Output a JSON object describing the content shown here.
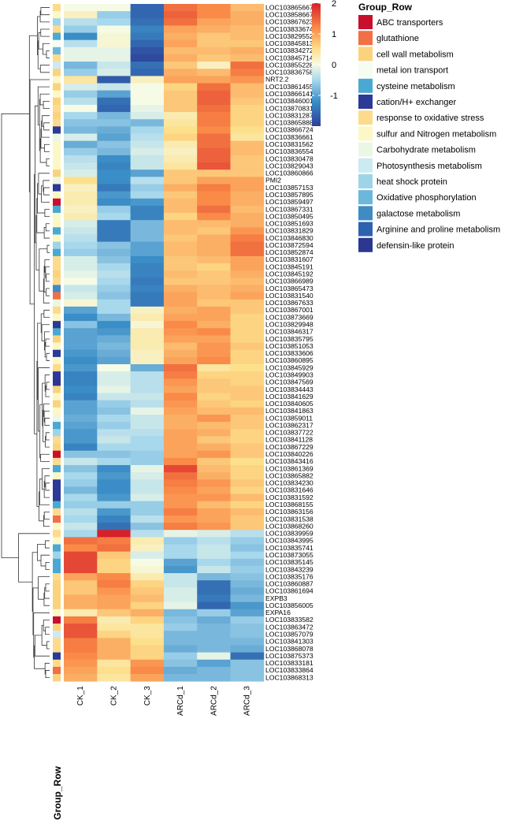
{
  "chart_data": {
    "type": "heatmap",
    "columns": [
      "CK_1",
      "CK_2",
      "CK_3",
      "ARCd_1",
      "ARCd_2",
      "ARCd_3"
    ],
    "row_annotation_title": "Group_Row",
    "colorbar": {
      "min": -2,
      "max": 2,
      "ticks": [
        "2",
        "1",
        "0",
        "-1"
      ],
      "tick_values": [
        2,
        1,
        0,
        -1
      ]
    },
    "colors": {
      "low": "#2c3f99",
      "mid_low": "#3a8dc6",
      "light_low": "#a8d8ec",
      "neutral": "#f6fbe6",
      "light_high": "#fde08c",
      "mid_high": "#fa8a47",
      "high": "#d6202a"
    },
    "legend": [
      {
        "label": "ABC transporters",
        "color": "#c8102e"
      },
      {
        "label": "glutathione",
        "color": "#f36f45"
      },
      {
        "label": "cell wall metabolism",
        "color": "#fbd37d"
      },
      {
        "label": "metal ion transport",
        "color": "#f5fcf0"
      },
      {
        "label": "cysteine metabolism",
        "color": "#4aa9d3"
      },
      {
        "label": "cation/H+ exchanger",
        "color": "#2b3a96"
      },
      {
        "label": "response to oxidative stress",
        "color": "#fddb8c"
      },
      {
        "label": "sulfur and Nitrogen metabolism",
        "color": "#fbf8c6"
      },
      {
        "label": "Carbohydrate metabolism",
        "color": "#ecf6e4"
      },
      {
        "label": "Photosynthesis metabolism",
        "color": "#cde9f1"
      },
      {
        "label": "heat shock  protein",
        "color": "#9ed4e8"
      },
      {
        "label": "Oxidative phosphorylation",
        "color": "#6cb7dc"
      },
      {
        "label": "galactose metabolism",
        "color": "#3f8bc4"
      },
      {
        "label": "Arginine and proline metabolism",
        "color": "#2d62b0"
      },
      {
        "label": "defensin-like protein",
        "color": "#2c3791"
      }
    ],
    "rows": [
      {
        "gene": "LOC103865667",
        "group": 6,
        "values": [
          0.0,
          0.0,
          -1.6,
          1.4,
          1.2,
          0.8
        ]
      },
      {
        "gene": "LOC103858667",
        "group": 7,
        "values": [
          0.2,
          -0.6,
          -1.6,
          1.5,
          1.2,
          0.9
        ]
      },
      {
        "gene": "LOC103867623",
        "group": 10,
        "values": [
          -0.4,
          -0.5,
          -1.5,
          1.4,
          1.0,
          0.9
        ]
      },
      {
        "gene": "LOC103833674",
        "group": 6,
        "values": [
          -0.6,
          0.0,
          -1.3,
          1.0,
          0.9,
          0.8
        ]
      },
      {
        "gene": "LOC103829552",
        "group": 4,
        "values": [
          -1.2,
          0.1,
          -1.4,
          0.9,
          0.7,
          0.8
        ]
      },
      {
        "gene": "LOC103845813",
        "group": 3,
        "values": [
          -0.4,
          0.1,
          -1.6,
          1.0,
          0.7,
          0.7
        ]
      },
      {
        "gene": "LOC103834272",
        "group": 11,
        "values": [
          -0.1,
          -0.1,
          -1.8,
          0.8,
          0.8,
          0.9
        ]
      },
      {
        "gene": "LOC103845714",
        "group": 6,
        "values": [
          -0.1,
          -0.1,
          -1.9,
          0.9,
          0.7,
          0.8
        ]
      },
      {
        "gene": "LOC103855228",
        "group": 9,
        "values": [
          -0.8,
          -0.3,
          -1.5,
          0.7,
          0.2,
          1.4
        ]
      },
      {
        "gene": "LOC103836758",
        "group": 2,
        "values": [
          -0.6,
          -0.2,
          -1.6,
          0.9,
          0.8,
          1.3
        ]
      },
      {
        "gene": "NRT2.2",
        "group": 7,
        "values": [
          0.4,
          -1.7,
          0.2,
          1.0,
          1.0,
          1.1
        ]
      },
      {
        "gene": "LOC103861455",
        "group": 2,
        "values": [
          -0.2,
          -0.3,
          0.0,
          0.6,
          1.4,
          0.8
        ]
      },
      {
        "gene": "LOC103866141",
        "group": 7,
        "values": [
          -0.6,
          -1.0,
          0.0,
          0.7,
          1.5,
          0.8
        ]
      },
      {
        "gene": "LOC103846001",
        "group": 2,
        "values": [
          -0.4,
          -1.5,
          0.0,
          0.7,
          1.5,
          0.7
        ]
      },
      {
        "gene": "LOC103870831",
        "group": 6,
        "values": [
          0.0,
          -1.6,
          -0.1,
          0.7,
          1.4,
          0.6
        ]
      },
      {
        "gene": "LOC103831287",
        "group": 2,
        "values": [
          -0.5,
          -0.8,
          -0.2,
          0.3,
          1.3,
          0.6
        ]
      },
      {
        "gene": "LOC103865888",
        "group": 6,
        "values": [
          -0.7,
          -0.7,
          -0.8,
          0.4,
          1.3,
          0.6
        ]
      },
      {
        "gene": "LOC103866724",
        "group": 5,
        "values": [
          -0.8,
          -0.9,
          -0.5,
          0.5,
          1.2,
          0.5
        ]
      },
      {
        "gene": "LOC103836661",
        "group": 8,
        "values": [
          -0.2,
          -1.0,
          -0.4,
          0.6,
          1.4,
          0.4
        ]
      },
      {
        "gene": "LOC103831562",
        "group": 7,
        "values": [
          -0.9,
          -0.7,
          -0.3,
          0.3,
          1.4,
          0.8
        ]
      },
      {
        "gene": "LOC103836554",
        "group": 7,
        "values": [
          -0.6,
          -0.8,
          -0.2,
          0.2,
          1.5,
          0.8
        ]
      },
      {
        "gene": "LOC103830478",
        "group": 7,
        "values": [
          -0.4,
          -1.2,
          -0.3,
          0.3,
          1.5,
          0.7
        ]
      },
      {
        "gene": "LOC103829043",
        "group": 7,
        "values": [
          -0.3,
          -1.3,
          -0.3,
          0.4,
          1.6,
          0.7
        ]
      },
      {
        "gene": "LOC103860866",
        "group": 2,
        "values": [
          -0.2,
          -1.2,
          -1.0,
          0.7,
          0.7,
          0.7
        ]
      },
      {
        "gene": "PMI2",
        "group": 8,
        "values": [
          0.5,
          -1.2,
          -0.4,
          0.7,
          1.0,
          1.0
        ]
      },
      {
        "gene": "LOC103857153",
        "group": 5,
        "values": [
          0.2,
          -1.4,
          -0.6,
          0.9,
          1.3,
          1.0
        ]
      },
      {
        "gene": "LOC103857895",
        "group": 7,
        "values": [
          0.3,
          -1.1,
          -0.5,
          0.7,
          1.2,
          0.9
        ]
      },
      {
        "gene": "LOC103859497",
        "group": 0,
        "values": [
          0.3,
          -1.2,
          -1.1,
          0.8,
          1.2,
          0.9
        ]
      },
      {
        "gene": "LOC103867331",
        "group": 4,
        "values": [
          0.2,
          -0.6,
          -1.3,
          0.8,
          1.4,
          0.8
        ]
      },
      {
        "gene": "LOC103850495",
        "group": 7,
        "values": [
          0.3,
          -0.5,
          -1.3,
          0.6,
          1.2,
          0.9
        ]
      },
      {
        "gene": "LOC103851693",
        "group": 7,
        "values": [
          -0.2,
          -1.4,
          -0.8,
          0.8,
          0.8,
          0.9
        ]
      },
      {
        "gene": "LOC103831829",
        "group": 4,
        "values": [
          -0.3,
          -1.4,
          -0.8,
          0.8,
          0.7,
          1.1
        ]
      },
      {
        "gene": "LOC103846830",
        "group": 7,
        "values": [
          -0.4,
          -1.4,
          -0.8,
          0.7,
          0.9,
          1.3
        ]
      },
      {
        "gene": "LOC103872594",
        "group": 10,
        "values": [
          -0.5,
          -0.7,
          -1.0,
          0.8,
          0.9,
          1.4
        ]
      },
      {
        "gene": "LOC103852874",
        "group": 4,
        "values": [
          -0.6,
          -0.8,
          -1.0,
          0.8,
          0.9,
          1.4
        ]
      },
      {
        "gene": "LOC103831607",
        "group": 6,
        "values": [
          -0.2,
          -0.7,
          -1.2,
          0.7,
          0.8,
          1.0
        ]
      },
      {
        "gene": "LOC103845191",
        "group": 6,
        "values": [
          -0.2,
          -0.5,
          -1.3,
          0.7,
          0.6,
          1.0
        ]
      },
      {
        "gene": "LOC103845192",
        "group": 2,
        "values": [
          -0.1,
          -0.4,
          -1.3,
          0.8,
          0.7,
          0.9
        ]
      },
      {
        "gene": "LOC103866989",
        "group": 6,
        "values": [
          0.0,
          -0.5,
          -1.4,
          0.7,
          0.7,
          0.8
        ]
      },
      {
        "gene": "LOC103865473",
        "group": 12,
        "values": [
          -0.3,
          -0.6,
          -1.3,
          0.9,
          0.8,
          0.9
        ]
      },
      {
        "gene": "LOC103831540",
        "group": 1,
        "values": [
          -0.2,
          -0.7,
          -1.4,
          1.0,
          0.8,
          1.0
        ]
      },
      {
        "gene": "LOC103867633",
        "group": 8,
        "values": [
          0.1,
          -0.5,
          -1.4,
          1.0,
          0.7,
          0.7
        ]
      },
      {
        "gene": "LOC103867001",
        "group": 6,
        "values": [
          -1.0,
          -0.5,
          0.2,
          0.9,
          1.0,
          0.7
        ]
      },
      {
        "gene": "LOC103873669",
        "group": 7,
        "values": [
          -1.2,
          -0.8,
          0.3,
          1.0,
          1.0,
          0.6
        ]
      },
      {
        "gene": "LOC103829948",
        "group": 5,
        "values": [
          -0.7,
          -1.2,
          0.1,
          1.2,
          0.9,
          0.6
        ]
      },
      {
        "gene": "LOC103846317",
        "group": 4,
        "values": [
          -1.0,
          -1.1,
          0.3,
          1.1,
          1.2,
          0.6
        ]
      },
      {
        "gene": "LOC103835795",
        "group": 2,
        "values": [
          -1.0,
          -0.9,
          0.3,
          1.0,
          1.0,
          0.6
        ]
      },
      {
        "gene": "LOC103851053",
        "group": 7,
        "values": [
          -1.0,
          -0.8,
          0.3,
          0.8,
          1.1,
          0.7
        ]
      },
      {
        "gene": "LOC103833606",
        "group": 5,
        "values": [
          -1.1,
          -0.9,
          0.2,
          0.9,
          1.1,
          0.6
        ]
      },
      {
        "gene": "LOC103860895",
        "group": 7,
        "values": [
          -1.2,
          -1.0,
          0.2,
          1.0,
          1.2,
          0.6
        ]
      },
      {
        "gene": "LOC103845929",
        "group": 6,
        "values": [
          -1.1,
          0.0,
          -0.9,
          1.4,
          0.4,
          0.5
        ]
      },
      {
        "gene": "LOC103849903",
        "group": 5,
        "values": [
          -1.3,
          -0.2,
          -0.4,
          1.3,
          0.6,
          0.6
        ]
      },
      {
        "gene": "LOC103847569",
        "group": 14,
        "values": [
          -1.3,
          -0.2,
          -0.4,
          1.1,
          0.7,
          0.6
        ]
      },
      {
        "gene": "LOC103834443",
        "group": 2,
        "values": [
          -1.2,
          -0.1,
          -0.4,
          1.0,
          0.7,
          0.7
        ]
      },
      {
        "gene": "LOC103841629",
        "group": 7,
        "values": [
          -1.3,
          -0.3,
          -0.3,
          1.2,
          0.6,
          0.7
        ]
      },
      {
        "gene": "LOC103840605",
        "group": 2,
        "values": [
          -1.0,
          -0.6,
          -0.4,
          1.1,
          0.7,
          0.6
        ]
      },
      {
        "gene": "LOC103841863",
        "group": 7,
        "values": [
          -1.0,
          -0.7,
          -0.1,
          1.0,
          0.8,
          0.8
        ]
      },
      {
        "gene": "LOC103859011",
        "group": 8,
        "values": [
          -0.9,
          -0.5,
          -0.3,
          0.9,
          1.1,
          0.7
        ]
      },
      {
        "gene": "LOC103862317",
        "group": 4,
        "values": [
          -1.0,
          -0.6,
          -0.3,
          0.9,
          0.8,
          0.7
        ]
      },
      {
        "gene": "LOC103837722",
        "group": 10,
        "values": [
          -1.1,
          -0.4,
          -0.4,
          1.0,
          0.9,
          0.6
        ]
      },
      {
        "gene": "LOC103841128",
        "group": 6,
        "values": [
          -1.1,
          -0.3,
          -0.5,
          1.0,
          0.7,
          0.6
        ]
      },
      {
        "gene": "LOC103867229",
        "group": 2,
        "values": [
          -1.3,
          -0.5,
          -0.5,
          1.0,
          0.9,
          0.7
        ]
      },
      {
        "gene": "LOC103840226",
        "group": 0,
        "values": [
          -0.7,
          -0.7,
          -0.6,
          1.0,
          1.1,
          0.7
        ]
      },
      {
        "gene": "LOC103843416",
        "group": 6,
        "values": [
          -0.3,
          -0.5,
          -0.6,
          1.2,
          0.7,
          0.5
        ]
      },
      {
        "gene": "LOC103861369",
        "group": 4,
        "values": [
          -0.7,
          -1.2,
          -0.1,
          1.7,
          0.8,
          0.6
        ]
      },
      {
        "gene": "LOC103865882",
        "group": 7,
        "values": [
          -0.5,
          -1.1,
          -0.2,
          1.4,
          0.9,
          0.6
        ]
      },
      {
        "gene": "LOC103834230",
        "group": 5,
        "values": [
          -0.6,
          -1.2,
          -0.3,
          1.3,
          1.1,
          0.7
        ]
      },
      {
        "gene": "LOC103831646",
        "group": 5,
        "values": [
          -0.8,
          -1.2,
          -0.3,
          1.2,
          1.0,
          0.6
        ]
      },
      {
        "gene": "LOC103831592",
        "group": 5,
        "values": [
          -0.5,
          -1.1,
          -0.2,
          1.1,
          1.1,
          0.8
        ]
      },
      {
        "gene": "LOC103868155",
        "group": 4,
        "values": [
          -0.6,
          -0.6,
          -0.6,
          1.1,
          0.8,
          0.6
        ]
      },
      {
        "gene": "LOC103863156",
        "group": 6,
        "values": [
          -0.4,
          -1.1,
          -0.6,
          1.3,
          1.0,
          0.8
        ]
      },
      {
        "gene": "LOC103831538",
        "group": 1,
        "values": [
          -0.5,
          -1.3,
          -0.4,
          1.1,
          1.0,
          0.7
        ]
      },
      {
        "gene": "LOC103868260",
        "group": 7,
        "values": [
          -0.3,
          -1.5,
          -0.7,
          1.3,
          1.1,
          0.7
        ]
      },
      {
        "gene": "LOC103839959",
        "group": 6,
        "values": [
          -0.5,
          2.0,
          -0.4,
          -0.1,
          -0.2,
          -0.4
        ]
      },
      {
        "gene": "LOC103843995",
        "group": 7,
        "values": [
          1.4,
          1.3,
          0.3,
          -0.6,
          -0.4,
          -0.6
        ]
      },
      {
        "gene": "LOC103835741",
        "group": 4,
        "values": [
          1.2,
          1.4,
          0.2,
          -0.5,
          -0.3,
          -0.7
        ]
      },
      {
        "gene": "LOC103873055",
        "group": 10,
        "values": [
          1.7,
          0.7,
          -0.2,
          -0.5,
          -0.3,
          -0.5
        ]
      },
      {
        "gene": "LOC103835145",
        "group": 4,
        "values": [
          1.7,
          0.6,
          0.0,
          -1.0,
          -0.5,
          -0.7
        ]
      },
      {
        "gene": "LOC103843239",
        "group": 4,
        "values": [
          1.7,
          0.6,
          0.1,
          -1.1,
          -0.3,
          -0.6
        ]
      },
      {
        "gene": "LOC103835176",
        "group": 6,
        "values": [
          1.0,
          1.2,
          0.3,
          -0.3,
          -0.8,
          -0.7
        ]
      },
      {
        "gene": "LOC103860887",
        "group": 2,
        "values": [
          0.7,
          1.3,
          0.6,
          -0.3,
          -1.5,
          -0.8
        ]
      },
      {
        "gene": "LOC103861694",
        "group": 2,
        "values": [
          0.7,
          1.1,
          0.7,
          -0.2,
          -1.5,
          -0.9
        ]
      },
      {
        "gene": "EXPB3",
        "group": 2,
        "values": [
          0.9,
          1.0,
          0.8,
          -0.2,
          -1.4,
          -0.8
        ]
      },
      {
        "gene": "LOC103856005",
        "group": 2,
        "values": [
          0.9,
          1.0,
          0.6,
          -0.1,
          -1.6,
          -1.1
        ]
      },
      {
        "gene": "EXPA16",
        "group": 7,
        "values": [
          0.3,
          0.7,
          0.9,
          -0.8,
          -0.6,
          -1.0
        ]
      },
      {
        "gene": "LOC103833582",
        "group": 0,
        "values": [
          1.3,
          0.3,
          0.6,
          -0.7,
          -0.9,
          -0.6
        ]
      },
      {
        "gene": "LOC103863472",
        "group": 2,
        "values": [
          1.6,
          0.4,
          0.4,
          -0.6,
          -0.8,
          -0.7
        ]
      },
      {
        "gene": "LOC103857079",
        "group": 9,
        "values": [
          1.6,
          0.6,
          0.4,
          -0.8,
          -0.8,
          -0.7
        ]
      },
      {
        "gene": "LOC103841303",
        "group": 6,
        "values": [
          1.3,
          0.9,
          0.5,
          -0.8,
          -0.8,
          -0.8
        ]
      },
      {
        "gene": "LOC103868078",
        "group": 6,
        "values": [
          1.3,
          0.9,
          0.6,
          -0.9,
          -0.8,
          -0.9
        ]
      },
      {
        "gene": "LOC103875373",
        "group": 5,
        "values": [
          1.2,
          0.9,
          0.6,
          -0.6,
          -0.1,
          -1.5
        ]
      },
      {
        "gene": "LOC103833181",
        "group": 6,
        "values": [
          1.1,
          0.4,
          1.1,
          -0.7,
          -1.0,
          -0.7
        ]
      },
      {
        "gene": "LOC103833864",
        "group": 1,
        "values": [
          1.0,
          0.5,
          1.2,
          -0.9,
          -0.8,
          -0.7
        ]
      },
      {
        "gene": "LOC103868313",
        "group": 2,
        "values": [
          0.9,
          0.4,
          1.0,
          -0.8,
          -0.8,
          -0.7
        ]
      }
    ]
  }
}
